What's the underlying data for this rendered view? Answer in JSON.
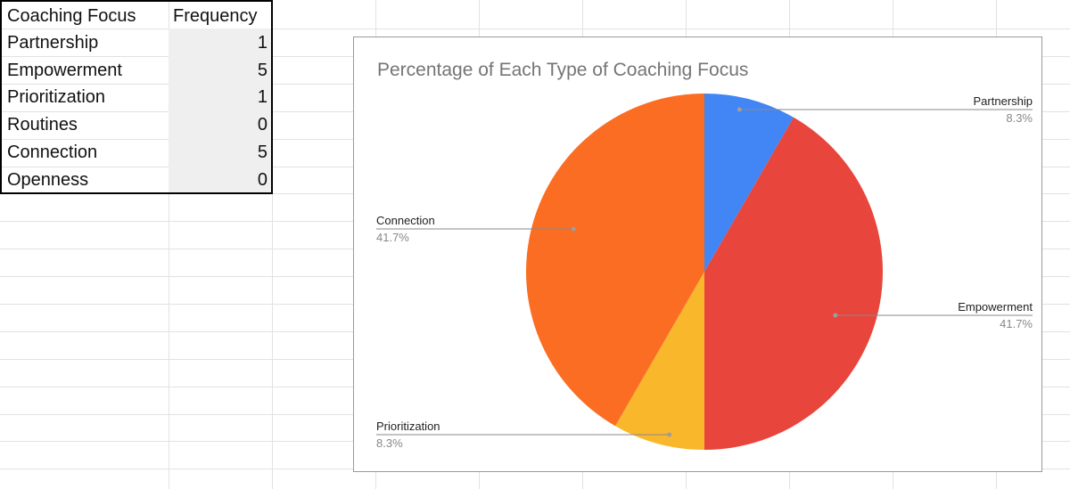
{
  "table": {
    "headers": [
      "Coaching Focus",
      "Frequency"
    ],
    "rows": [
      {
        "label": "Partnership",
        "value": "1"
      },
      {
        "label": "Empowerment",
        "value": "5"
      },
      {
        "label": "Prioritization",
        "value": "1"
      },
      {
        "label": "Routines",
        "value": "0"
      },
      {
        "label": "Connection",
        "value": "5"
      },
      {
        "label": "Openness",
        "value": "0"
      }
    ]
  },
  "chart_data": {
    "type": "pie",
    "title": "Percentage of Each Type of Coaching Focus",
    "categories": [
      "Partnership",
      "Empowerment",
      "Prioritization",
      "Connection"
    ],
    "values": [
      1,
      5,
      1,
      5
    ],
    "percent_labels": [
      "8.3%",
      "41.7%",
      "8.3%",
      "41.7%"
    ],
    "colors": [
      "#4285f4",
      "#e8453c",
      "#f9b72c",
      "#fb6d22"
    ],
    "legend": "none"
  }
}
